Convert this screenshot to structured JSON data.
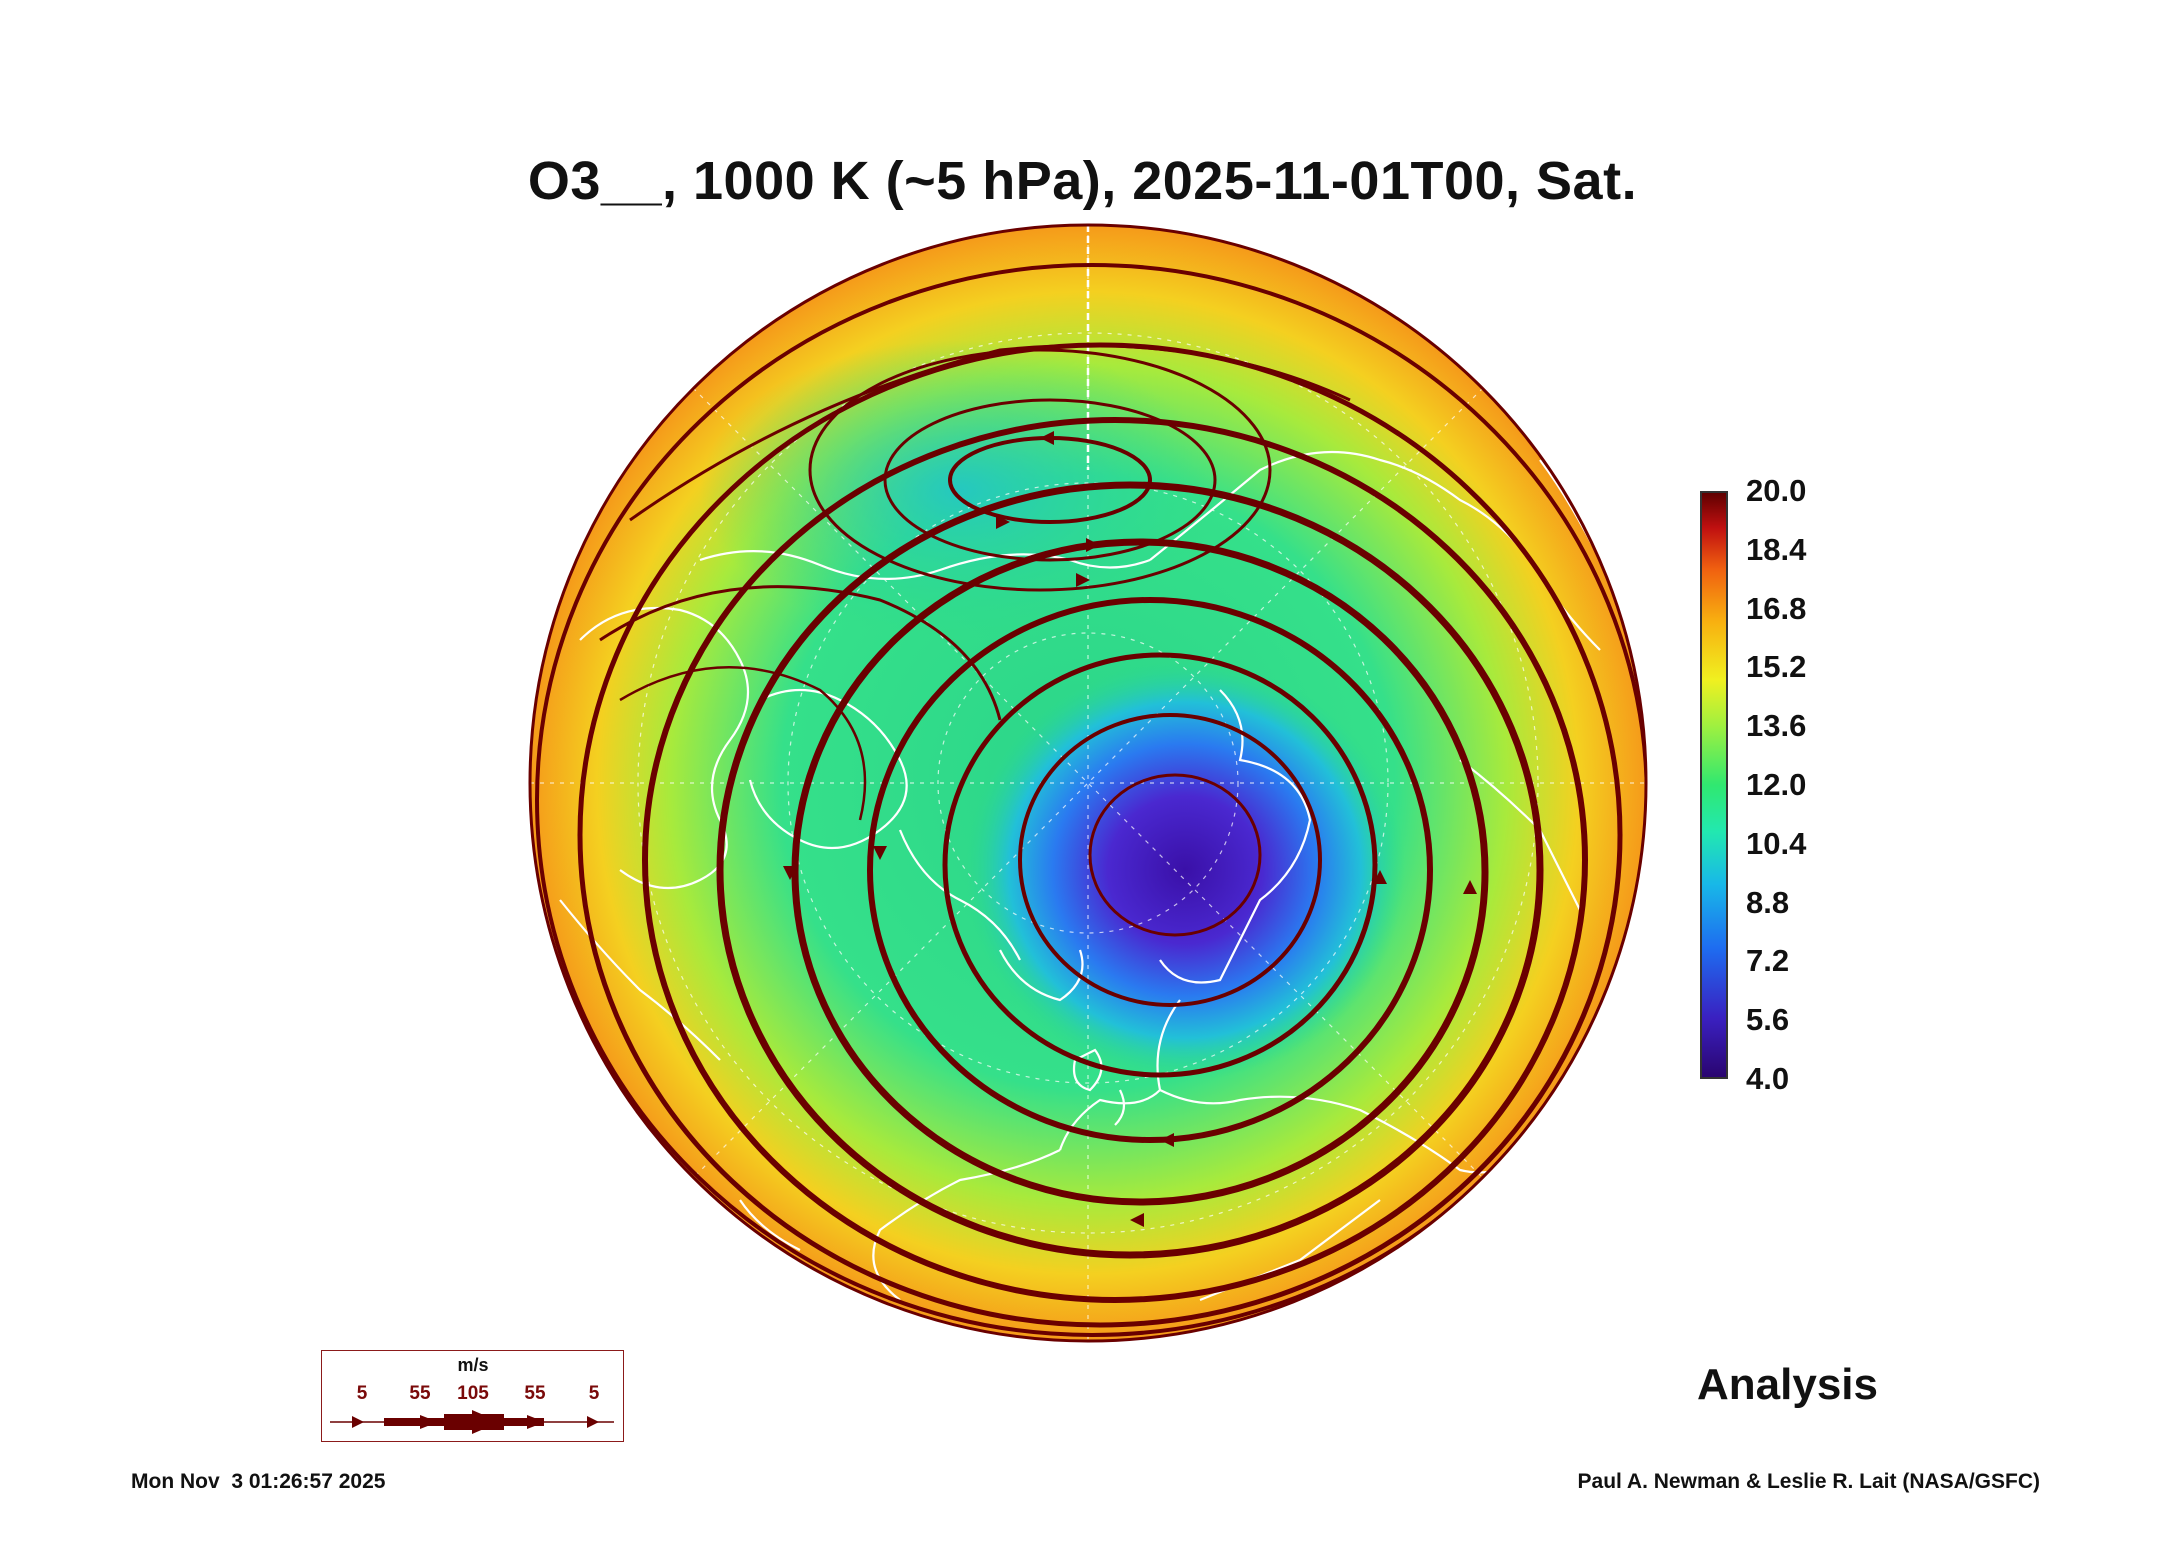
{
  "title": "O3__, 1000 K (~5 hPa), 2025-11-01T00, Sat.",
  "colorbar": {
    "ticks": [
      "20.0",
      "18.4",
      "16.8",
      "15.2",
      "13.6",
      "12.0",
      "10.4",
      "8.8",
      "7.2",
      "5.6",
      "4.0"
    ],
    "min": 4.0,
    "max": 20.0
  },
  "wind_legend": {
    "unit": "m/s",
    "values": [
      "5",
      "55",
      "105",
      "55",
      "5"
    ]
  },
  "label": "Analysis",
  "timestamp": "Mon Nov  3 01:26:57 2025",
  "credit": "Paul A. Newman & Leslie R. Lait (NASA/GSFC)",
  "colors": {
    "stream": "#6a0000",
    "coast": "#ffffff",
    "low": "#3b1fb0",
    "high": "#f59a1a"
  }
}
